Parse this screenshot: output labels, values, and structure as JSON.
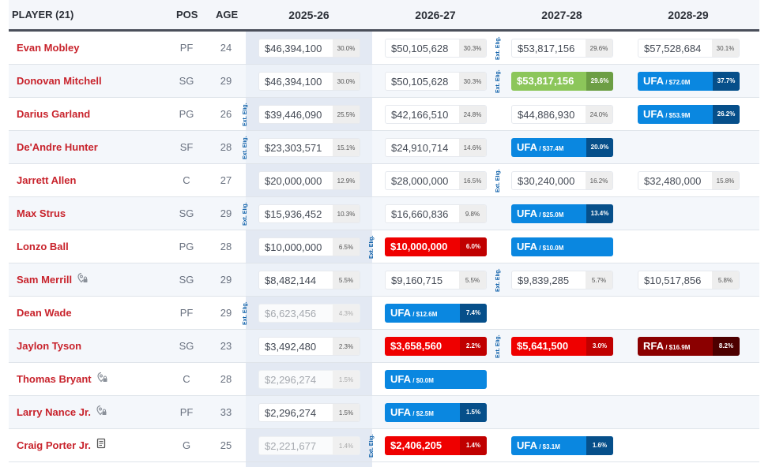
{
  "header": {
    "player_label": "PLAYER (21)",
    "pos_label": "POS",
    "age_label": "AGE",
    "seasons": [
      "2025-26",
      "2026-27",
      "2027-28",
      "2028-29"
    ]
  },
  "ext_label": "Ext. Elig.",
  "colors": {
    "player_name": "#c8232c",
    "ufa": "#0a87e0",
    "ufa_pct": "#064f8a",
    "rfa": "#8b0000",
    "rfa_pct": "#4d0000",
    "option_red": "#ef0000",
    "guaranteed_green": "#8cc65a",
    "ext_elig": "#0b5ea8"
  },
  "rows": [
    {
      "name": "Evan Mobley",
      "pos": "PF",
      "age": "24",
      "icon": null,
      "cells": [
        {
          "type": "plain",
          "amt": "$46,394,100",
          "pct": "30.0%"
        },
        {
          "type": "plain",
          "amt": "$50,105,628",
          "pct": "30.3%"
        },
        {
          "type": "plain",
          "amt": "$53,817,156",
          "pct": "29.6%",
          "ext": true
        },
        {
          "type": "plain",
          "amt": "$57,528,684",
          "pct": "30.1%"
        }
      ]
    },
    {
      "name": "Donovan Mitchell",
      "pos": "SG",
      "age": "29",
      "icon": null,
      "cells": [
        {
          "type": "plain",
          "amt": "$46,394,100",
          "pct": "30.0%"
        },
        {
          "type": "plain",
          "amt": "$50,105,628",
          "pct": "30.3%"
        },
        {
          "type": "green",
          "amt": "$53,817,156",
          "pct": "29.6%",
          "ext": true
        },
        {
          "type": "ufa",
          "amt": "UFA",
          "sub": " / $72.0M",
          "pct": "37.7%"
        }
      ]
    },
    {
      "name": "Darius Garland",
      "pos": "PG",
      "age": "26",
      "icon": null,
      "cells": [
        {
          "type": "plain",
          "amt": "$39,446,090",
          "pct": "25.5%",
          "ext": true
        },
        {
          "type": "plain",
          "amt": "$42,166,510",
          "pct": "24.8%"
        },
        {
          "type": "plain",
          "amt": "$44,886,930",
          "pct": "24.0%"
        },
        {
          "type": "ufa",
          "amt": "UFA",
          "sub": " / $53.9M",
          "pct": "26.2%"
        }
      ]
    },
    {
      "name": "De'Andre Hunter",
      "pos": "SF",
      "age": "28",
      "icon": null,
      "cells": [
        {
          "type": "plain",
          "amt": "$23,303,571",
          "pct": "15.1%",
          "ext": true
        },
        {
          "type": "plain",
          "amt": "$24,910,714",
          "pct": "14.6%"
        },
        {
          "type": "ufa",
          "amt": "UFA",
          "sub": " / $37.4M",
          "pct": "20.0%"
        },
        null
      ]
    },
    {
      "name": "Jarrett Allen",
      "pos": "C",
      "age": "27",
      "icon": null,
      "cells": [
        {
          "type": "plain",
          "amt": "$20,000,000",
          "pct": "12.9%"
        },
        {
          "type": "plain",
          "amt": "$28,000,000",
          "pct": "16.5%"
        },
        {
          "type": "plain",
          "amt": "$30,240,000",
          "pct": "16.2%",
          "ext": true
        },
        {
          "type": "plain",
          "amt": "$32,480,000",
          "pct": "15.8%"
        }
      ]
    },
    {
      "name": "Max Strus",
      "pos": "SG",
      "age": "29",
      "icon": null,
      "cells": [
        {
          "type": "plain",
          "amt": "$15,936,452",
          "pct": "10.3%",
          "ext": true
        },
        {
          "type": "plain",
          "amt": "$16,660,836",
          "pct": "9.8%"
        },
        {
          "type": "ufa",
          "amt": "UFA",
          "sub": " / $25.0M",
          "pct": "13.4%"
        },
        null
      ]
    },
    {
      "name": "Lonzo Ball",
      "pos": "PG",
      "age": "28",
      "icon": null,
      "cells": [
        {
          "type": "plain",
          "amt": "$10,000,000",
          "pct": "6.5%"
        },
        {
          "type": "red",
          "amt": "$10,000,000",
          "pct": "6.0%",
          "ext": true
        },
        {
          "type": "ufa",
          "amt": "UFA",
          "sub": " / $10.0M",
          "pct": ""
        },
        null
      ]
    },
    {
      "name": "Sam Merrill",
      "pos": "SG",
      "age": "29",
      "icon": "trade-restriction",
      "cells": [
        {
          "type": "plain",
          "amt": "$8,482,144",
          "pct": "5.5%"
        },
        {
          "type": "plain",
          "amt": "$9,160,715",
          "pct": "5.5%"
        },
        {
          "type": "plain",
          "amt": "$9,839,285",
          "pct": "5.7%",
          "ext": true
        },
        {
          "type": "plain",
          "amt": "$10,517,856",
          "pct": "5.8%"
        }
      ]
    },
    {
      "name": "Dean Wade",
      "pos": "PF",
      "age": "29",
      "icon": null,
      "cells": [
        {
          "type": "faded",
          "amt": "$6,623,456",
          "pct": "4.3%",
          "ext": true
        },
        {
          "type": "ufa",
          "amt": "UFA",
          "sub": " / $12.6M",
          "pct": "7.4%"
        },
        null,
        null
      ]
    },
    {
      "name": "Jaylon Tyson",
      "pos": "SG",
      "age": "23",
      "icon": null,
      "cells": [
        {
          "type": "plain",
          "amt": "$3,492,480",
          "pct": "2.3%"
        },
        {
          "type": "red",
          "amt": "$3,658,560",
          "pct": "2.2%"
        },
        {
          "type": "red",
          "amt": "$5,641,500",
          "pct": "3.0%",
          "ext": true
        },
        {
          "type": "rfa",
          "amt": "RFA",
          "sub": " / $16.9M",
          "pct": "8.2%"
        }
      ]
    },
    {
      "name": "Thomas Bryant",
      "pos": "C",
      "age": "28",
      "icon": "trade-restriction",
      "cells": [
        {
          "type": "faded",
          "amt": "$2,296,274",
          "pct": "1.5%"
        },
        {
          "type": "ufa",
          "amt": "UFA",
          "sub": " / $0.0M",
          "pct": ""
        },
        null,
        null
      ]
    },
    {
      "name": "Larry Nance Jr.",
      "pos": "PF",
      "age": "33",
      "icon": "trade-restriction",
      "cells": [
        {
          "type": "plain",
          "amt": "$2,296,274",
          "pct": "1.5%"
        },
        {
          "type": "ufa",
          "amt": "UFA",
          "sub": " / $2.5M",
          "pct": "1.5%"
        },
        null,
        null
      ]
    },
    {
      "name": "Craig Porter Jr.",
      "pos": "G",
      "age": "25",
      "icon": "contract-document",
      "cells": [
        {
          "type": "faded",
          "amt": "$2,221,677",
          "pct": "1.4%"
        },
        {
          "type": "red",
          "amt": "$2,406,205",
          "pct": "1.4%",
          "ext": true
        },
        {
          "type": "ufa",
          "amt": "UFA",
          "sub": " / $3.1M",
          "pct": "1.6%"
        },
        null
      ]
    }
  ]
}
